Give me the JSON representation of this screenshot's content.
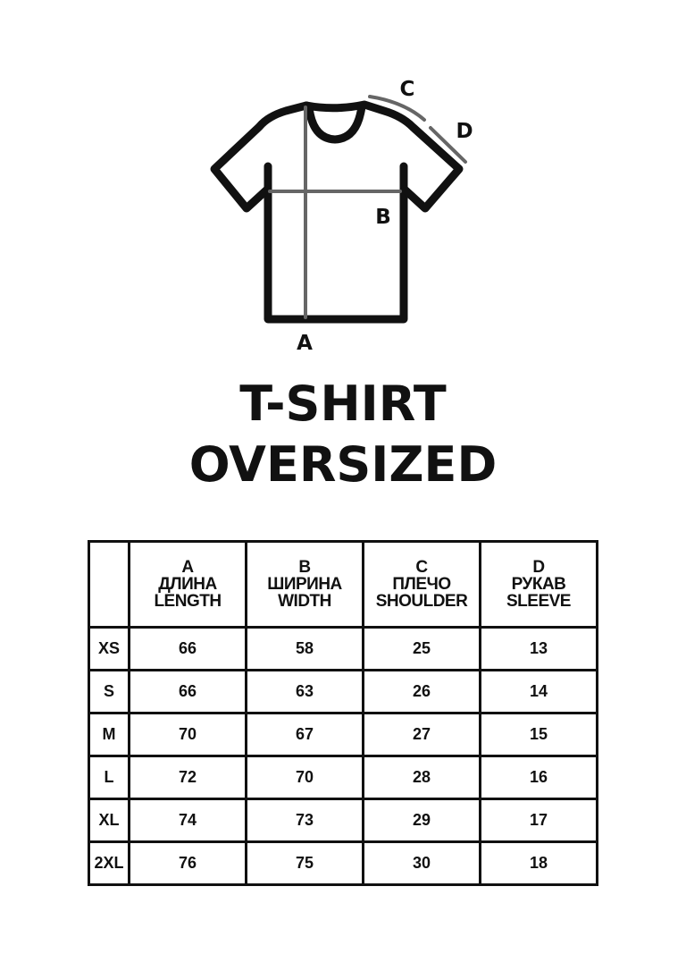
{
  "diagram": {
    "labels": {
      "a": "A",
      "b": "B",
      "c": "C",
      "d": "D"
    },
    "colors": {
      "outline": "#111111",
      "measure": "#666666"
    }
  },
  "title": {
    "line1": "T-SHIRT",
    "line2": "OVERSIZED"
  },
  "table": {
    "columns": [
      {
        "letter": "A",
        "ru": "ДЛИНА",
        "en": "LENGTH"
      },
      {
        "letter": "B",
        "ru": "ШИРИНА",
        "en": "WIDTH"
      },
      {
        "letter": "C",
        "ru": "ПЛЕЧО",
        "en": "SHOULDER"
      },
      {
        "letter": "D",
        "ru": "РУКАВ",
        "en": "SLEEVE"
      }
    ],
    "rows": [
      {
        "size": "XS",
        "values": [
          "66",
          "58",
          "25",
          "13"
        ]
      },
      {
        "size": "S",
        "values": [
          "66",
          "63",
          "26",
          "14"
        ]
      },
      {
        "size": "M",
        "values": [
          "70",
          "67",
          "27",
          "15"
        ]
      },
      {
        "size": "L",
        "values": [
          "72",
          "70",
          "28",
          "16"
        ]
      },
      {
        "size": "XL",
        "values": [
          "74",
          "73",
          "29",
          "17"
        ]
      },
      {
        "size": "2XL",
        "values": [
          "76",
          "75",
          "30",
          "18"
        ]
      }
    ]
  }
}
